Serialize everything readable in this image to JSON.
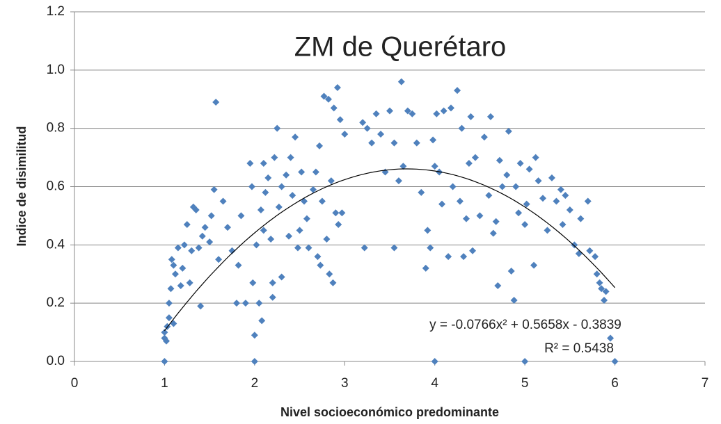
{
  "chart_data": {
    "type": "scatter",
    "title": "ZM de Querétaro",
    "x_label": "Nivel socioeconómico predominante",
    "y_label": "Indice de disimilitud",
    "color": "#4f81bd",
    "grid": true,
    "xlim": [
      0,
      7
    ],
    "xticks": [
      0,
      1,
      2,
      3,
      4,
      5,
      6,
      7
    ],
    "ylim": [
      0,
      1.2
    ],
    "yticks": [
      {
        "value": 0,
        "label": "0.0"
      },
      0.2,
      0.4,
      0.6,
      0.8,
      {
        "value": 1,
        "label": "1.0"
      },
      1.2
    ],
    "x": [
      1,
      1,
      1,
      1.02,
      1.03,
      1.05,
      1.05,
      1.07,
      1.08,
      1.1,
      1.1,
      1.12,
      1.15,
      1.18,
      1.2,
      1.22,
      1.25,
      1.28,
      1.3,
      1.32,
      1.35,
      1.38,
      1.4,
      1.42,
      1.45,
      1.5,
      1.52,
      1.55,
      1.57,
      1.6,
      1.65,
      1.7,
      1.75,
      1.8,
      1.82,
      1.85,
      1.9,
      1.95,
      1.97,
      1.98,
      2,
      2,
      2.02,
      2.05,
      2.07,
      2.08,
      2.1,
      2.1,
      2.12,
      2.15,
      2.18,
      2.2,
      2.2,
      2.22,
      2.25,
      2.27,
      2.3,
      2.3,
      2.35,
      2.38,
      2.4,
      2.42,
      2.45,
      2.48,
      2.5,
      2.52,
      2.55,
      2.58,
      2.6,
      2.65,
      2.68,
      2.7,
      2.72,
      2.73,
      2.75,
      2.77,
      2.8,
      2.82,
      2.83,
      2.85,
      2.87,
      2.88,
      2.9,
      2.92,
      2.93,
      2.95,
      2.97,
      3,
      3.2,
      3.22,
      3.25,
      3.3,
      3.35,
      3.4,
      3.45,
      3.5,
      3.55,
      3.55,
      3.6,
      3.63,
      3.65,
      3.7,
      3.75,
      3.8,
      3.85,
      3.9,
      3.92,
      3.95,
      3.98,
      4,
      4,
      4.02,
      4.05,
      4.08,
      4.1,
      4.15,
      4.18,
      4.2,
      4.25,
      4.28,
      4.3,
      4.32,
      4.35,
      4.38,
      4.4,
      4.42,
      4.45,
      4.5,
      4.55,
      4.6,
      4.62,
      4.65,
      4.68,
      4.7,
      4.72,
      4.75,
      4.8,
      4.82,
      4.85,
      4.88,
      4.9,
      4.93,
      4.95,
      5,
      5,
      5.02,
      5.05,
      5.1,
      5.12,
      5.15,
      5.2,
      5.25,
      5.3,
      5.35,
      5.4,
      5.42,
      5.45,
      5.5,
      5.55,
      5.6,
      5.62,
      5.7,
      5.72,
      5.78,
      5.8,
      5.83,
      5.85,
      5.88,
      5.9,
      5.95,
      6
    ],
    "y": [
      0,
      0.08,
      0.1,
      0.07,
      0.12,
      0.15,
      0.2,
      0.25,
      0.35,
      0.13,
      0.33,
      0.3,
      0.39,
      0.26,
      0.32,
      0.4,
      0.47,
      0.27,
      0.38,
      0.53,
      0.52,
      0.39,
      0.19,
      0.43,
      0.46,
      0.41,
      0.5,
      0.59,
      0.89,
      0.35,
      0.55,
      0.46,
      0.38,
      0.2,
      0.33,
      0.5,
      0.2,
      0.68,
      0.6,
      0.27,
      0.09,
      0,
      0.4,
      0.2,
      0.52,
      0.14,
      0.45,
      0.68,
      0.58,
      0.63,
      0.42,
      0.27,
      0.22,
      0.7,
      0.8,
      0.53,
      0.29,
      0.6,
      0.64,
      0.43,
      0.7,
      0.57,
      0.77,
      0.39,
      0.45,
      0.65,
      0.55,
      0.49,
      0.39,
      0.59,
      0.65,
      0.36,
      0.74,
      0.33,
      0.55,
      0.91,
      0.42,
      0.9,
      0.3,
      0.62,
      0.27,
      0.87,
      0.51,
      0.94,
      0.47,
      0.83,
      0.51,
      0.78,
      0.82,
      0.39,
      0.8,
      0.75,
      0.85,
      0.78,
      0.65,
      0.86,
      0.39,
      0.75,
      0.62,
      0.96,
      0.67,
      0.86,
      0.85,
      0.75,
      0.58,
      0.32,
      0.45,
      0.39,
      0.76,
      0,
      0.67,
      0.85,
      0.65,
      0.54,
      0.86,
      0.36,
      0.87,
      0.6,
      0.93,
      0.55,
      0.8,
      0.36,
      0.49,
      0.68,
      0.84,
      0.38,
      0.7,
      0.5,
      0.77,
      0.57,
      0.84,
      0.44,
      0.48,
      0.26,
      0.69,
      0.6,
      0.64,
      0.79,
      0.31,
      0.21,
      0.6,
      0.51,
      0.68,
      0,
      0.47,
      0.54,
      0.66,
      0.33,
      0.7,
      0.62,
      0.56,
      0.45,
      0.63,
      0.55,
      0.59,
      0.47,
      0.57,
      0.52,
      0.4,
      0.37,
      0.49,
      0.55,
      0.38,
      0.36,
      0.3,
      0.27,
      0.25,
      0.21,
      0.24,
      0.08,
      0
    ],
    "trendline": {
      "coefficients": [
        -0.0766,
        0.5658,
        -0.3839
      ],
      "x_range": [
        1,
        6
      ]
    },
    "annotations": [
      "y = -0.0766x² + 0.5658x - 0.3839",
      "R² = 0.5438"
    ]
  }
}
